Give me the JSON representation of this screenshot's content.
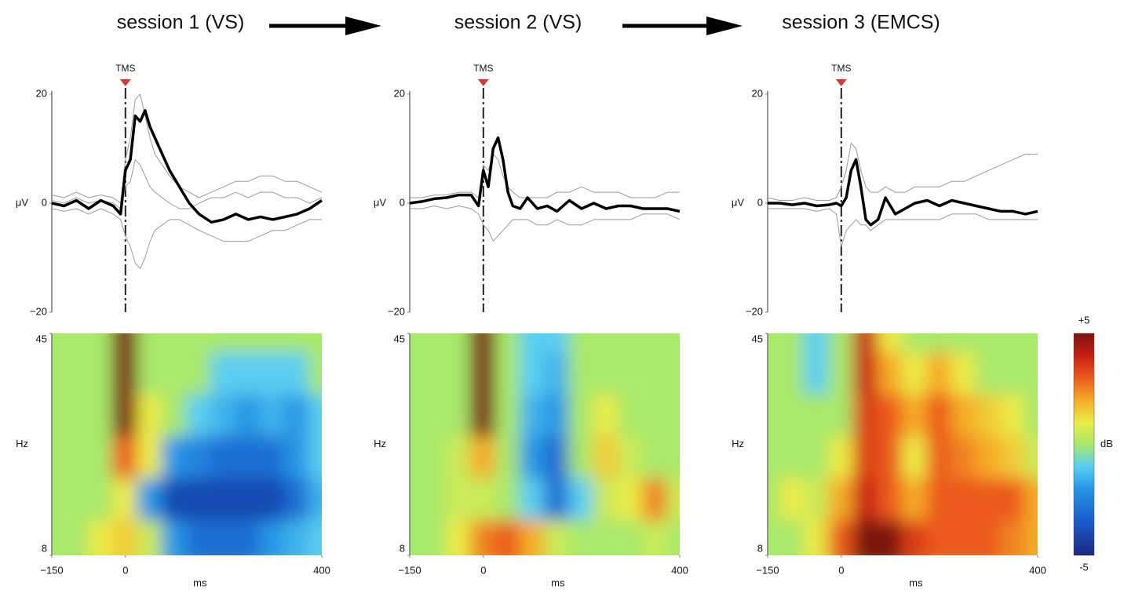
{
  "chart_data": [
    {
      "type": "line",
      "title": "session 1 (VS)",
      "annotation": "TMS",
      "ylabel": "μV",
      "x": [
        -150,
        -125,
        -100,
        -75,
        -50,
        -25,
        -10,
        0,
        10,
        20,
        30,
        40,
        50,
        60,
        75,
        90,
        110,
        130,
        150,
        175,
        200,
        225,
        250,
        275,
        300,
        325,
        350,
        375,
        400
      ],
      "xlim": [
        -150,
        400
      ],
      "ylim": [
        -20,
        20
      ],
      "yticks": [
        {
          "value": -20,
          "label": "−20"
        },
        0,
        20
      ],
      "series": [
        {
          "color": "#9a9a9a",
          "width": 1,
          "values": [
            1.5,
            1,
            2,
            1,
            1.5,
            1,
            0,
            8,
            12,
            19,
            20,
            16,
            12,
            9,
            7,
            5,
            3,
            2,
            1,
            2,
            3,
            4,
            4,
            5,
            5,
            4,
            4,
            3,
            2
          ]
        },
        {
          "color": "#9a9a9a",
          "width": 1,
          "values": [
            -1,
            -1.5,
            -1,
            -2,
            -1,
            -2,
            -3,
            -6,
            -8,
            -11,
            -12,
            -10,
            -7,
            -5,
            -4,
            -3,
            -3,
            -4,
            -5,
            -6,
            -7,
            -7,
            -7,
            -6,
            -5,
            -5,
            -4,
            -3,
            -3
          ]
        },
        {
          "color": "#9a9a9a",
          "width": 1,
          "values": [
            0.5,
            0,
            1,
            0,
            0.5,
            0,
            -1,
            3,
            4,
            8,
            7,
            5,
            3,
            2,
            1,
            0,
            -1,
            -1,
            0,
            1,
            1,
            2,
            1,
            2,
            2,
            1,
            1,
            0,
            1
          ]
        },
        {
          "color": "#000000",
          "width": 3.5,
          "values": [
            0,
            -0.5,
            0.5,
            -1,
            0.5,
            -0.5,
            -2,
            6,
            8,
            16,
            15,
            17,
            14,
            12,
            9,
            6,
            3,
            0,
            -2,
            -3.5,
            -3,
            -2,
            -3,
            -2.5,
            -3,
            -2.5,
            -2,
            -1,
            0.5
          ]
        }
      ]
    },
    {
      "type": "line",
      "title": "session 2 (VS)",
      "annotation": "TMS",
      "ylabel": "μV",
      "x": [
        -150,
        -125,
        -100,
        -75,
        -50,
        -25,
        -10,
        0,
        10,
        20,
        30,
        40,
        50,
        60,
        75,
        90,
        110,
        130,
        150,
        175,
        200,
        225,
        250,
        275,
        300,
        325,
        350,
        375,
        400
      ],
      "xlim": [
        -150,
        400
      ],
      "ylim": [
        -20,
        20
      ],
      "yticks": [
        {
          "value": -20,
          "label": "−20"
        },
        0,
        20
      ],
      "series": [
        {
          "color": "#9a9a9a",
          "width": 1,
          "values": [
            1,
            1,
            1.5,
            1.5,
            2,
            2,
            1,
            7,
            6,
            9,
            8,
            5,
            3,
            2,
            1,
            1,
            1,
            1,
            2,
            2,
            3,
            2,
            2,
            2,
            1,
            1,
            1,
            2,
            2
          ]
        },
        {
          "color": "#9a9a9a",
          "width": 1,
          "values": [
            -1,
            -1,
            -0.5,
            -1,
            -0.5,
            -1,
            -2,
            -4,
            -5,
            -7,
            -6,
            -5,
            -4,
            -3,
            -3,
            -3,
            -4,
            -4,
            -3,
            -4,
            -4,
            -3,
            -3,
            -3,
            -3,
            -2,
            -2,
            -2,
            -3
          ]
        },
        {
          "color": "#000000",
          "width": 3.5,
          "values": [
            0,
            0.3,
            0.8,
            1,
            1.5,
            1.5,
            -0.5,
            6,
            3,
            10,
            12,
            8,
            2,
            -0.5,
            -1,
            1,
            -1,
            -0.5,
            -1.5,
            0.5,
            -1,
            0,
            -1,
            -0.5,
            -0.5,
            -1,
            -1,
            -1,
            -1.5
          ]
        }
      ]
    },
    {
      "type": "line",
      "title": "session 3 (EMCS)",
      "annotation": "TMS",
      "ylabel": "μV",
      "x": [
        -150,
        -125,
        -100,
        -75,
        -50,
        -25,
        -10,
        0,
        10,
        20,
        30,
        40,
        50,
        60,
        75,
        90,
        110,
        130,
        150,
        175,
        200,
        225,
        250,
        275,
        300,
        325,
        350,
        375,
        400
      ],
      "xlim": [
        -150,
        400
      ],
      "ylim": [
        -20,
        20
      ],
      "yticks": [
        {
          "value": -20,
          "label": "−20"
        },
        0,
        20
      ],
      "series": [
        {
          "color": "#9a9a9a",
          "width": 1,
          "values": [
            1,
            0.5,
            0.5,
            1,
            0.5,
            0.5,
            1,
            3,
            6,
            11,
            10,
            6,
            3,
            2,
            2,
            3,
            2,
            2,
            3,
            3,
            3,
            4,
            4,
            5,
            6,
            7,
            8,
            9,
            9
          ]
        },
        {
          "color": "#9a9a9a",
          "width": 1,
          "values": [
            -1,
            -1,
            -1,
            -1,
            -1.5,
            -1,
            -2,
            -8,
            -5,
            -4,
            -3,
            -4,
            -4,
            -5,
            -4,
            -3,
            -3,
            -3,
            -3,
            -3,
            -3,
            -2,
            -2,
            -2,
            -3,
            -3,
            -3,
            -3,
            -3
          ]
        },
        {
          "color": "#000000",
          "width": 3.5,
          "values": [
            0,
            0,
            -0.3,
            0,
            -0.5,
            -0.3,
            0,
            -0.5,
            1,
            6,
            8,
            3,
            -3,
            -4,
            -3,
            1,
            -2,
            -1,
            0,
            0.5,
            -0.5,
            0.5,
            0,
            -0.5,
            -1,
            -1.5,
            -1.5,
            -2,
            -1.5
          ]
        }
      ]
    },
    {
      "type": "heatmap",
      "xlabel": "ms",
      "ylabel": "Hz",
      "x": [
        -150,
        -100,
        -50,
        0,
        50,
        100,
        150,
        200,
        250,
        300,
        350,
        400
      ],
      "y": [
        45,
        38,
        31,
        24,
        17,
        10
      ],
      "xlim": [
        -150,
        400
      ],
      "xticks": [
        {
          "value": -150,
          "label": "−150"
        },
        0,
        400
      ],
      "ylim": [
        8,
        45
      ],
      "yticks": [
        8,
        45
      ],
      "zlim": [
        -5,
        5
      ],
      "z": [
        [
          0,
          0,
          0,
          5,
          0,
          0,
          0,
          0,
          0,
          0,
          0,
          0
        ],
        [
          0,
          0,
          0,
          5,
          0,
          0,
          0,
          -1,
          -1,
          -1,
          -1,
          0
        ],
        [
          0,
          0,
          0,
          5,
          1,
          0,
          -1,
          -1.5,
          -2,
          -1.5,
          -2,
          -1
        ],
        [
          0,
          0,
          0,
          3,
          1,
          -2,
          -2.5,
          -3,
          -3,
          -3,
          -2,
          -1
        ],
        [
          0,
          0,
          0,
          1,
          -2,
          -4,
          -4,
          -4,
          -4,
          -4,
          -3,
          -1.5
        ],
        [
          0,
          0,
          1,
          1.5,
          0.5,
          -2,
          -3,
          -3,
          -3,
          -2,
          -1.5,
          -1
        ]
      ]
    },
    {
      "type": "heatmap",
      "xlabel": "ms",
      "ylabel": "Hz",
      "x": [
        -150,
        -100,
        -50,
        0,
        50,
        100,
        150,
        200,
        250,
        300,
        350,
        400
      ],
      "y": [
        45,
        38,
        31,
        24,
        17,
        10
      ],
      "xlim": [
        -150,
        400
      ],
      "xticks": [
        {
          "value": -150,
          "label": "−150"
        },
        0,
        400
      ],
      "ylim": [
        8,
        45
      ],
      "yticks": [
        8,
        45
      ],
      "zlim": [
        -5,
        5
      ],
      "z": [
        [
          0,
          0,
          0,
          5,
          0,
          -1,
          -1,
          0,
          0,
          0,
          0,
          0
        ],
        [
          0,
          0,
          0,
          5,
          0,
          -1,
          -1.5,
          0,
          0,
          0,
          0,
          0
        ],
        [
          0,
          0,
          0,
          5,
          0,
          -1.5,
          -2,
          0,
          1,
          0,
          0,
          0
        ],
        [
          0,
          0,
          0.5,
          2,
          0,
          -2,
          -3,
          0,
          1.5,
          0.5,
          0,
          0
        ],
        [
          0,
          0,
          0.5,
          0.5,
          0,
          -1,
          -3,
          -1,
          0.5,
          1,
          2.5,
          0.5
        ],
        [
          0,
          0,
          1,
          2.5,
          3,
          2,
          0.5,
          0,
          0,
          0,
          0.5,
          0
        ]
      ]
    },
    {
      "type": "heatmap",
      "xlabel": "ms",
      "ylabel": "Hz",
      "x": [
        -150,
        -100,
        -50,
        0,
        50,
        100,
        150,
        200,
        250,
        300,
        350,
        400
      ],
      "y": [
        45,
        38,
        31,
        24,
        17,
        10
      ],
      "xlim": [
        -150,
        400
      ],
      "xticks": [
        {
          "value": -150,
          "label": "−150"
        },
        0,
        400
      ],
      "ylim": [
        8,
        45
      ],
      "yticks": [
        8,
        45
      ],
      "zlim": [
        -5,
        5
      ],
      "z": [
        [
          0,
          0,
          -1,
          0,
          4,
          1,
          0,
          0,
          0,
          0,
          0,
          0
        ],
        [
          0,
          0,
          -1,
          0,
          4,
          2,
          1,
          2,
          1,
          0,
          0,
          0
        ],
        [
          0,
          0,
          0,
          0,
          3.5,
          3,
          2,
          3,
          2,
          1.5,
          1,
          0
        ],
        [
          0,
          0,
          0,
          1,
          3.5,
          3,
          1,
          3,
          2.5,
          2,
          1.5,
          0.5
        ],
        [
          0,
          1,
          0.5,
          2,
          4,
          3,
          2,
          3,
          3,
          3,
          3,
          2
        ],
        [
          0,
          0,
          1,
          3,
          5,
          5,
          3.5,
          3,
          3,
          3,
          2.5,
          2
        ]
      ]
    }
  ],
  "colorbar": {
    "label": "dB",
    "lim": [
      -5,
      5
    ],
    "ticks": [
      {
        "value": 5,
        "label": "+5"
      },
      -5
    ]
  }
}
